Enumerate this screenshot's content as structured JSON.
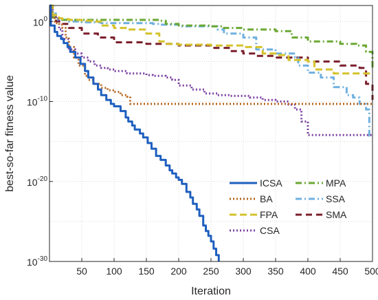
{
  "chart_data": {
    "type": "line",
    "xlabel": "Iteration",
    "ylabel": "best-so-far fitness value",
    "xlim": [
      0,
      500
    ],
    "ylim": [
      -30,
      2
    ],
    "yscale": "log",
    "grid": true,
    "x_ticks": [
      50,
      100,
      150,
      200,
      250,
      300,
      350,
      400,
      450,
      500
    ],
    "y_ticks": [
      {
        "mantissa": "10",
        "exponent": "0",
        "value": 0
      },
      {
        "mantissa": "10",
        "exponent": "-10",
        "value": -10
      },
      {
        "mantissa": "10",
        "exponent": "-20",
        "value": -20
      },
      {
        "mantissa": "10",
        "exponent": "-30",
        "value": -30
      }
    ],
    "legend_position": "bottom-right",
    "series": [
      {
        "name": "ICSA",
        "color": "#1f5fbf",
        "dash": "solid",
        "legend_col": 0,
        "legend_row": 0,
        "x": [
          0,
          2,
          8,
          12,
          18,
          22,
          28,
          32,
          40,
          48,
          55,
          60,
          68,
          75,
          80,
          88,
          95,
          100,
          110,
          118,
          122,
          128,
          132,
          140,
          145,
          152,
          158,
          165,
          172,
          180,
          186,
          190,
          196,
          200,
          205,
          212,
          218,
          222,
          228,
          232,
          238,
          242,
          246,
          250,
          254,
          258,
          262
        ],
        "y": [
          2,
          -0.5,
          -1.3,
          -1.8,
          -2.2,
          -2.7,
          -3.2,
          -3.8,
          -4.5,
          -5.3,
          -6.2,
          -7,
          -7.8,
          -8.5,
          -9.2,
          -9.8,
          -10.3,
          -10.6,
          -11.2,
          -12,
          -12.5,
          -13,
          -13.5,
          -14,
          -14.5,
          -15.2,
          -15.9,
          -16.8,
          -17.3,
          -18,
          -18.6,
          -19,
          -19.5,
          -19.8,
          -20.3,
          -21.3,
          -22,
          -22.8,
          -23.5,
          -24.3,
          -25.5,
          -26.2,
          -26.8,
          -27.5,
          -28.4,
          -29.2,
          -30
        ]
      },
      {
        "name": "BA",
        "color": "#b5651d",
        "dash": "dot",
        "legend_col": 0,
        "legend_row": 1,
        "x": [
          0,
          3,
          8,
          15,
          20,
          25,
          30,
          38,
          45,
          55,
          60,
          68,
          80,
          90,
          100,
          110,
          120,
          125,
          200,
          300,
          400,
          500
        ],
        "y": [
          2,
          0.5,
          -0.2,
          -0.4,
          -0.8,
          -2,
          -3.2,
          -4.5,
          -5.5,
          -6.8,
          -7.3,
          -7.8,
          -8.3,
          -8.6,
          -8.8,
          -9.2,
          -9.4,
          -10.3,
          -10.3,
          -10.3,
          -10.3,
          -10.3
        ]
      },
      {
        "name": "FPA",
        "color": "#d4c22b",
        "dash": "long",
        "legend_col": 0,
        "legend_row": 2,
        "x": [
          0,
          5,
          10,
          15,
          20,
          30,
          50,
          65,
          80,
          100,
          120,
          150,
          170,
          180,
          200,
          250,
          300,
          330,
          350,
          370,
          400,
          410,
          440,
          460,
          500
        ],
        "y": [
          2,
          0.8,
          0.5,
          0.4,
          0.3,
          0.2,
          0.1,
          0,
          -0.5,
          -0.8,
          -1,
          -1.5,
          -2.5,
          -2.8,
          -2.9,
          -3,
          -3.2,
          -4,
          -4.2,
          -4.8,
          -5,
          -6,
          -6.5,
          -6.5,
          -6.5
        ]
      },
      {
        "name": "CSA",
        "color": "#7b3fa0",
        "dash": "dot",
        "legend_col": 0,
        "legend_row": 3,
        "x": [
          0,
          5,
          10,
          15,
          20,
          30,
          40,
          50,
          60,
          70,
          80,
          90,
          100,
          120,
          150,
          160,
          180,
          190,
          200,
          220,
          240,
          260,
          280,
          310,
          330,
          350,
          370,
          380,
          390,
          400,
          420,
          450,
          500
        ],
        "y": [
          2,
          0.8,
          0.4,
          -1,
          -2.2,
          -3.5,
          -4,
          -4.5,
          -5,
          -5.5,
          -5.8,
          -6,
          -6.2,
          -6.5,
          -6.7,
          -6.8,
          -7,
          -7.3,
          -8,
          -8.5,
          -9,
          -9.2,
          -9.3,
          -9.5,
          -9.8,
          -10,
          -10.4,
          -11,
          -12.5,
          -14.2,
          -14.2,
          -14.2,
          -14.2
        ]
      },
      {
        "name": "MPA",
        "color": "#6aa832",
        "dash": "dashdot",
        "legend_col": 1,
        "legend_row": 0,
        "x": [
          0,
          5,
          10,
          20,
          50,
          100,
          150,
          170,
          180,
          200,
          250,
          270,
          300,
          350,
          375,
          400,
          450,
          475,
          490,
          500
        ],
        "y": [
          2,
          0.5,
          0.3,
          0.2,
          0.2,
          0.2,
          0.2,
          0.1,
          -0.3,
          -0.5,
          -0.6,
          -0.8,
          -1,
          -1.2,
          -2,
          -2.5,
          -2.8,
          -3,
          -3.8,
          -5.8
        ]
      },
      {
        "name": "SSA",
        "color": "#6fb0e0",
        "dash": "dashdot",
        "legend_col": 1,
        "legend_row": 1,
        "x": [
          0,
          5,
          10,
          30,
          50,
          80,
          100,
          150,
          160,
          170,
          200,
          250,
          260,
          270,
          300,
          320,
          350,
          380,
          385,
          400,
          420,
          440,
          460,
          470,
          480,
          490,
          495,
          500
        ],
        "y": [
          2,
          1,
          0.2,
          0,
          -0.1,
          -0.2,
          -0.2,
          -0.2,
          -0.3,
          -0.4,
          -0.6,
          -0.6,
          -1,
          -1.5,
          -2,
          -3.5,
          -4,
          -4.5,
          -5.5,
          -6.4,
          -7,
          -8.2,
          -9.2,
          -9.5,
          -10.3,
          -11,
          -14.3,
          -14.3
        ]
      },
      {
        "name": "SMA",
        "color": "#7a1f2b",
        "dash": "dash",
        "legend_col": 1,
        "legend_row": 2,
        "x": [
          0,
          5,
          10,
          20,
          30,
          50,
          75,
          100,
          150,
          200,
          250,
          280,
          300,
          320,
          350,
          400,
          450,
          480,
          490,
          500
        ],
        "y": [
          2,
          0.8,
          0,
          -0.3,
          -0.8,
          -1.5,
          -2,
          -2.6,
          -2.8,
          -3,
          -3.3,
          -3.7,
          -4,
          -4.3,
          -4.5,
          -5,
          -5.5,
          -5.8,
          -7.8,
          -9.8
        ]
      }
    ]
  }
}
